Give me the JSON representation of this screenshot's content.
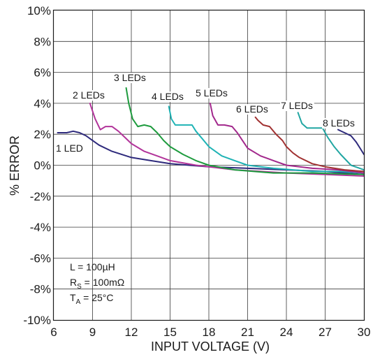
{
  "chart_data": {
    "type": "line",
    "xlabel": "INPUT VOLTAGE (V)",
    "ylabel": "% ERROR",
    "xlim": [
      6,
      30
    ],
    "ylim": [
      -10,
      10
    ],
    "x_ticks": [
      6,
      9,
      12,
      15,
      18,
      21,
      24,
      27,
      30
    ],
    "y_ticks": [
      -10,
      -8,
      -6,
      -4,
      -2,
      0,
      2,
      4,
      6,
      8,
      10
    ],
    "y_tick_labels": [
      "-10%",
      "-8%",
      "-6%",
      "-4%",
      "-2%",
      "0%",
      "2%",
      "4%",
      "6%",
      "8%",
      "10%"
    ],
    "grid": true,
    "series": [
      {
        "name": "1 LED",
        "color": "#2e2a7c",
        "x": [
          6.3,
          7.0,
          7.5,
          8.0,
          8.5,
          9.0,
          9.5,
          10.5,
          12.0,
          13.5,
          15.0,
          18.0,
          21.0,
          24.0,
          27.0,
          30.0
        ],
        "y": [
          2.1,
          2.1,
          2.2,
          2.1,
          1.9,
          1.6,
          1.3,
          0.9,
          0.5,
          0.3,
          0.1,
          -0.1,
          -0.2,
          -0.3,
          -0.4,
          -0.6
        ]
      },
      {
        "name": "2 LEDs",
        "color": "#b2349a",
        "x": [
          8.8,
          9.2,
          9.6,
          10.0,
          10.5,
          11.0,
          11.5,
          12.0,
          13.0,
          14.0,
          15.0,
          17.0,
          20.0,
          24.0,
          27.0,
          30.0
        ],
        "y": [
          4.0,
          3.0,
          2.3,
          2.5,
          2.5,
          2.2,
          1.8,
          1.4,
          0.9,
          0.6,
          0.3,
          0.0,
          -0.3,
          -0.5,
          -0.6,
          -0.7
        ]
      },
      {
        "name": "3 LEDs",
        "color": "#1e9b3e",
        "x": [
          11.6,
          11.8,
          12.1,
          12.5,
          13.0,
          13.5,
          14.0,
          14.5,
          15.0,
          16.0,
          17.0,
          18.0,
          20.0,
          23.0,
          26.0,
          30.0
        ],
        "y": [
          5.0,
          4.0,
          3.0,
          2.5,
          2.6,
          2.5,
          2.1,
          1.6,
          1.2,
          0.7,
          0.3,
          0.0,
          -0.3,
          -0.5,
          -0.5,
          -0.6
        ]
      },
      {
        "name": "4 LEDs",
        "color": "#1fb3b5",
        "x": [
          14.9,
          15.1,
          15.4,
          16.0,
          16.7,
          17.0,
          17.5,
          18.0,
          19.0,
          20.0,
          21.0,
          23.0,
          26.0,
          28.0,
          30.0
        ],
        "y": [
          3.8,
          3.0,
          2.6,
          2.6,
          2.6,
          2.2,
          1.7,
          1.2,
          0.6,
          0.3,
          0.0,
          -0.2,
          -0.4,
          -0.4,
          -0.5
        ]
      },
      {
        "name": "5 LEDs",
        "color": "#a2288c",
        "x": [
          18.1,
          18.3,
          18.7,
          19.2,
          19.8,
          20.2,
          20.6,
          21.0,
          22.0,
          23.0,
          24.0,
          26.0,
          28.0,
          30.0
        ],
        "y": [
          4.0,
          3.2,
          2.6,
          2.6,
          2.5,
          2.1,
          1.6,
          1.1,
          0.6,
          0.3,
          0.0,
          -0.2,
          -0.3,
          -0.5
        ]
      },
      {
        "name": "6 LEDs",
        "color": "#a13232",
        "x": [
          21.6,
          21.8,
          22.2,
          22.7,
          23.2,
          23.7,
          24.0,
          24.5,
          25.0,
          26.0,
          27.0,
          28.5,
          30.0
        ],
        "y": [
          3.1,
          2.9,
          2.6,
          2.5,
          2.0,
          1.6,
          1.2,
          0.8,
          0.5,
          0.1,
          -0.1,
          -0.3,
          -0.4
        ]
      },
      {
        "name": "7 LEDs",
        "color": "#21a6a2",
        "x": [
          24.9,
          25.2,
          25.6,
          26.2,
          26.8,
          27.2,
          27.7,
          28.2,
          29.0,
          30.0
        ],
        "y": [
          3.4,
          2.7,
          2.4,
          2.4,
          2.4,
          1.8,
          1.2,
          0.7,
          0.0,
          -0.3
        ]
      },
      {
        "name": "8 LEDs",
        "color": "#2e2a7c",
        "x": [
          28.0,
          28.5,
          29.0,
          29.4,
          29.7,
          30.0
        ],
        "y": [
          2.3,
          2.1,
          1.9,
          1.5,
          1.1,
          0.7
        ]
      }
    ]
  },
  "annotations": {
    "inductance": "L = 100µH",
    "rs_prefix": "R",
    "rs_sub": "S",
    "rs_value": " = 100mΩ",
    "ta_prefix": "T",
    "ta_sub": "A",
    "ta_value": " = 25°C"
  }
}
